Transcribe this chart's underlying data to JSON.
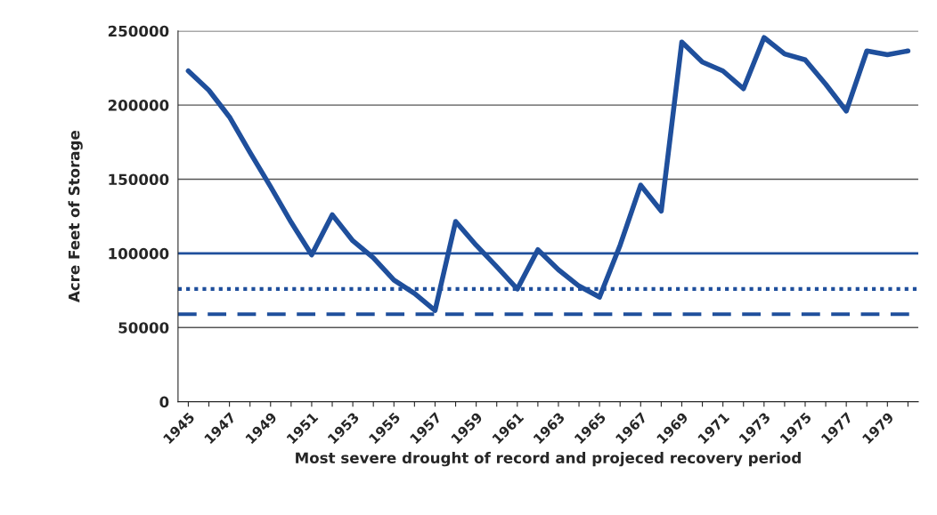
{
  "chart_data": {
    "type": "line",
    "xlabel": "Most severe drought of record and projeced recovery period",
    "ylabel": "Acre Feet of Storage",
    "x": [
      1945,
      1946,
      1947,
      1948,
      1949,
      1950,
      1951,
      1952,
      1953,
      1954,
      1955,
      1956,
      1957,
      1958,
      1959,
      1960,
      1961,
      1962,
      1963,
      1964,
      1965,
      1966,
      1967,
      1968,
      1969,
      1970,
      1971,
      1972,
      1973,
      1974,
      1975,
      1976,
      1977,
      1978,
      1979,
      1980
    ],
    "series": [
      {
        "color": "#1f4f9c",
        "line_style": "solid",
        "values": [
          223000,
          210000,
          192000,
          168000,
          145000,
          121000,
          99000,
          126000,
          108500,
          97000,
          82000,
          73000,
          61500,
          121500,
          105500,
          91000,
          76000,
          102500,
          89000,
          78000,
          70500,
          105500,
          146000,
          128500,
          242500,
          229000,
          223000,
          211000,
          245500,
          234500,
          230500,
          214000,
          196000,
          236500,
          234000,
          236500
        ]
      }
    ],
    "ref_lines": [
      {
        "axis": "y",
        "value": 100000,
        "color": "#1f4f9c",
        "line_style": "solid"
      },
      {
        "axis": "y",
        "value": 76000,
        "color": "#1f4f9c",
        "line_style": "dotted"
      },
      {
        "axis": "y",
        "value": 59000,
        "color": "#1f4f9c",
        "line_style": "dashed"
      }
    ],
    "xlim": [
      1944.5,
      1980.5
    ],
    "xticks": [
      1945,
      {
        "value": 1946,
        "label": null
      },
      1947,
      {
        "value": 1948,
        "label": null
      },
      1949,
      {
        "value": 1950,
        "label": null
      },
      1951,
      {
        "value": 1952,
        "label": null
      },
      1953,
      {
        "value": 1954,
        "label": null
      },
      1955,
      {
        "value": 1956,
        "label": null
      },
      1957,
      {
        "value": 1958,
        "label": null
      },
      1959,
      {
        "value": 1960,
        "label": null
      },
      1961,
      {
        "value": 1962,
        "label": null
      },
      1963,
      {
        "value": 1964,
        "label": null
      },
      1965,
      {
        "value": 1966,
        "label": null
      },
      1967,
      {
        "value": 1968,
        "label": null
      },
      1969,
      {
        "value": 1970,
        "label": null
      },
      1971,
      {
        "value": 1972,
        "label": null
      },
      1973,
      {
        "value": 1974,
        "label": null
      },
      1975,
      {
        "value": 1976,
        "label": null
      },
      1977,
      {
        "value": 1978,
        "label": null
      },
      1979,
      {
        "value": 1980,
        "label": null
      }
    ],
    "ylim": [
      0,
      250000
    ],
    "yticks": [
      0,
      50000,
      100000,
      150000,
      200000,
      250000
    ],
    "grid": "y",
    "legend": false,
    "marker": "none"
  }
}
